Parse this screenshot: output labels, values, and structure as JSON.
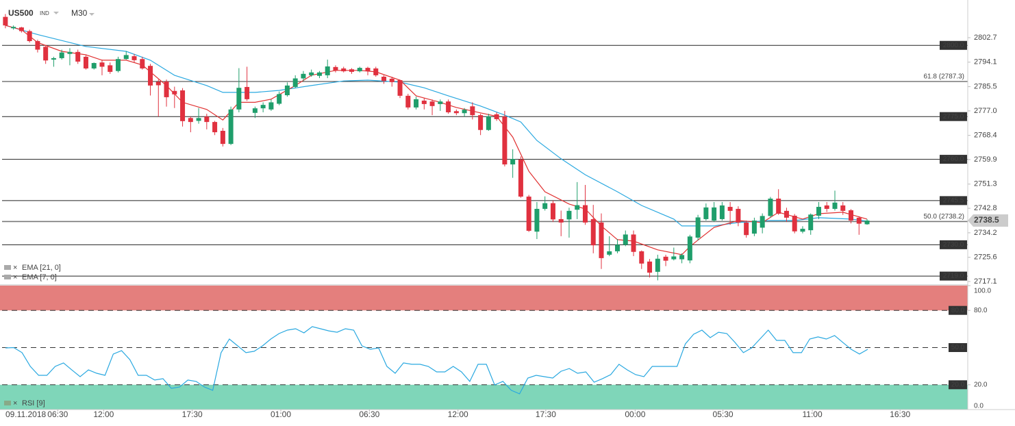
{
  "chart_data": [
    {
      "type": "candlestick",
      "title": "US500",
      "subtitle": "IND",
      "timeframe": "M30",
      "date_label": "09.11.2018",
      "xlim": [
        -0.5,
        119.5
      ],
      "xticks": [
        {
          "value": 6.5,
          "label": "06:30"
        },
        {
          "value": 12.2,
          "label": "12:00"
        },
        {
          "value": 23.2,
          "label": "17:30"
        },
        {
          "value": 34.2,
          "label": "01:00"
        },
        {
          "value": 45.2,
          "label": "06:30"
        },
        {
          "value": 56.2,
          "label": "12:00"
        },
        {
          "value": 67.1,
          "label": "17:30"
        },
        {
          "value": 78.2,
          "label": "00:00"
        },
        {
          "value": 89.1,
          "label": "05:30"
        },
        {
          "value": 100.2,
          "label": "11:00"
        },
        {
          "value": 111.1,
          "label": "16:30"
        }
      ],
      "ylim": [
        2715.9,
        2811.6
      ],
      "yticks": [
        2717.1,
        2725.6,
        2734.2,
        2742.8,
        2751.3,
        2759.9,
        2768.4,
        {
          "value": 2777.0,
          "label": "2777.0"
        },
        2785.5,
        2794.1,
        2802.7
      ],
      "up_color": "#1f9e6b",
      "down_color": "#e0313f",
      "open": [
        2810,
        2806,
        2806.3,
        2805,
        2801.5,
        2799.5,
        2795,
        2795.5,
        2797,
        2797.7,
        2796,
        2791.9,
        2794,
        2793,
        2791,
        2795.2,
        2796.2,
        2795.2,
        2792.8,
        2787.2,
        2787.3,
        2784,
        2784.2,
        2774.5,
        2773.5,
        2775,
        2773.1,
        2770,
        2765.4,
        2777.5,
        2785.4,
        2776.3,
        2777.9,
        2777.5,
        2779.5,
        2782.5,
        2785.4,
        2788.4,
        2789.5,
        2789.3,
        2789.5,
        2792.4,
        2791.9,
        2791.6,
        2790.9,
        2792.1,
        2791.9,
        2789,
        2788.3,
        2787.8,
        2782.3,
        2778.2,
        2780.6,
        2780.3,
        2779.4,
        2780.3,
        2776.9,
        2776.2,
        2778.6,
        2775.5,
        2770.3,
        2775.8,
        2775,
        2758.2,
        2759.9,
        2746.9,
        2734.6,
        2742.6,
        2744.6,
        2739,
        2738.9,
        2742.3,
        2743.9,
        2739,
        2737.8,
        2726.5,
        2727.7,
        2730,
        2733.6,
        2727.7,
        2724.1,
        2720.5,
        2725.8,
        2724.9,
        2724.9,
        2724.5,
        2732.5,
        2739,
        2738.5,
        2739,
        2743.3,
        2742.6,
        2737.8,
        2733.9,
        2736,
        2740.1,
        2746.2,
        2741.9,
        2740.2,
        2734.6,
        2735.1,
        2740.2,
        2743.8,
        2742.6,
        2743.8,
        2742.1,
        2739.5,
        2737.2
      ],
      "high": [
        2811,
        2807,
        2806.5,
        2805.5,
        2802,
        2800,
        2796,
        2798.5,
        2799,
        2798.5,
        2796.5,
        2794,
        2795,
        2794,
        2796,
        2798,
        2797,
        2796,
        2793.5,
        2788,
        2788,
        2785.5,
        2785,
        2775,
        2778,
        2776,
        2773.5,
        2771,
        2778.5,
        2792,
        2792.5,
        2778.5,
        2780,
        2781,
        2783.8,
        2787,
        2789.5,
        2791,
        2791.5,
        2791,
        2795,
        2793,
        2792.5,
        2792,
        2792.5,
        2792.5,
        2792.5,
        2789.5,
        2789,
        2788,
        2783,
        2782,
        2781.5,
        2781,
        2781,
        2781,
        2777.5,
        2778,
        2780,
        2776,
        2776,
        2776.5,
        2777,
        2763.5,
        2761,
        2747.5,
        2745,
        2747,
        2745.5,
        2742,
        2743,
        2752,
        2751,
        2744,
        2741,
        2733,
        2732,
        2735,
        2735,
        2728,
        2725,
        2726.5,
        2726.5,
        2729,
        2727,
        2733.5,
        2740.5,
        2744.5,
        2745,
        2745,
        2745,
        2743.5,
        2738.5,
        2739.5,
        2741,
        2746.8,
        2749.5,
        2743,
        2740.8,
        2736.5,
        2741,
        2745,
        2745,
        2749,
        2745,
        2742.5,
        2740,
        2739
      ],
      "low": [
        2806,
        2805.5,
        2804.5,
        2801,
        2797.5,
        2793.5,
        2792.5,
        2795,
        2793,
        2793.5,
        2791.5,
        2791.5,
        2789.5,
        2790,
        2790.5,
        2795,
        2794,
        2791.5,
        2782.4,
        2775,
        2778.5,
        2778,
        2771.5,
        2769.5,
        2772.5,
        2770.5,
        2768.5,
        2764.5,
        2765,
        2776.5,
        2780.5,
        2774.5,
        2776.5,
        2777,
        2779,
        2782,
        2785,
        2787.5,
        2789,
        2788.5,
        2788.5,
        2790.5,
        2790.5,
        2790,
        2790.5,
        2789.5,
        2789,
        2786.5,
        2785.5,
        2781.5,
        2777.5,
        2777.5,
        2777.5,
        2775.5,
        2777,
        2776,
        2775.5,
        2775,
        2774,
        2768.5,
        2770,
        2773.5,
        2757.5,
        2753.5,
        2746.5,
        2734.5,
        2732,
        2742,
        2738,
        2733,
        2732.5,
        2739,
        2737,
        2727,
        2721.5,
        2726,
        2727,
        2729.5,
        2726,
        2721.5,
        2718.5,
        2717.5,
        2722.5,
        2724.5,
        2723.5,
        2723.5,
        2731.5,
        2738.5,
        2738,
        2738.5,
        2737,
        2736.5,
        2732.5,
        2733,
        2734,
        2739.5,
        2740.5,
        2738,
        2734,
        2734,
        2733.5,
        2739,
        2741.5,
        2742,
        2740.5,
        2737.5,
        2733.5,
        2737
      ],
      "close": [
        2807,
        2806.5,
        2805,
        2801.5,
        2798.5,
        2794.7,
        2795.5,
        2797.5,
        2797.7,
        2794.3,
        2791.9,
        2793.8,
        2792.5,
        2790.7,
        2795.2,
        2796.6,
        2794.8,
        2791.9,
        2785.9,
        2786,
        2781.8,
        2782.8,
        2773.4,
        2773.1,
        2774.5,
        2773.1,
        2769.5,
        2765.4,
        2777.5,
        2785.1,
        2781.1,
        2777.9,
        2779.1,
        2780,
        2782.9,
        2785.9,
        2788.4,
        2790,
        2790.5,
        2790.5,
        2792.6,
        2791.2,
        2790.9,
        2790.7,
        2792.1,
        2790.9,
        2789.5,
        2787.5,
        2787.1,
        2782.3,
        2778.2,
        2781.1,
        2779.4,
        2778.7,
        2780.3,
        2776.5,
        2776.2,
        2777.4,
        2775.5,
        2770.3,
        2775.1,
        2774.1,
        2758.2,
        2760.1,
        2746.9,
        2734.9,
        2742.6,
        2744.6,
        2738.9,
        2737.8,
        2741.9,
        2743.9,
        2737.8,
        2729.8,
        2725.3,
        2727.7,
        2730,
        2733.6,
        2727.5,
        2723.4,
        2720.2,
        2725.1,
        2724.4,
        2725.9,
        2726.4,
        2732.9,
        2739.6,
        2743.1,
        2743.1,
        2743.8,
        2741.9,
        2737.8,
        2733.4,
        2738.5,
        2740.1,
        2746.2,
        2740.9,
        2739.5,
        2734.7,
        2735.6,
        2740.6,
        2743.3,
        2742.6,
        2744.8,
        2741.9,
        2738.5,
        2737.4,
        2738.5
      ],
      "series": [
        {
          "name": "EMA [21, 0]",
          "color": "#29a8e0",
          "x": [
            0,
            4,
            10,
            15,
            18,
            21,
            25,
            27,
            31,
            34,
            38,
            42,
            45,
            49,
            52,
            55,
            59,
            62,
            64,
            66,
            69,
            72,
            76,
            79,
            83,
            84,
            88,
            91,
            95,
            98,
            101,
            105,
            107
          ],
          "values": [
            2807,
            2803.8,
            2799.6,
            2797.9,
            2794.8,
            2789.5,
            2785.9,
            2783.5,
            2783.5,
            2784.2,
            2785.9,
            2787.5,
            2787.8,
            2787.1,
            2785.1,
            2782.3,
            2778.7,
            2775.5,
            2773.1,
            2766.6,
            2760.2,
            2754.6,
            2748.6,
            2743.8,
            2739,
            2736.6,
            2736.6,
            2737.8,
            2738.5,
            2738.5,
            2739.5,
            2739,
            2738.3
          ]
        },
        {
          "name": "EMA [7, 0]",
          "color": "#e03030",
          "x": [
            0,
            2,
            4,
            7,
            10,
            12,
            15,
            17,
            20,
            22,
            25,
            27,
            29,
            31,
            33,
            36,
            38,
            41,
            44,
            46,
            49,
            51,
            54,
            56,
            59,
            61,
            63,
            65,
            67,
            70,
            72,
            74,
            76,
            78,
            81,
            84,
            85,
            88,
            91,
            94,
            96,
            99,
            101,
            104,
            107
          ],
          "values": [
            2807,
            2805.5,
            2801,
            2797.9,
            2796.7,
            2794.8,
            2794.8,
            2793.1,
            2785.9,
            2780,
            2777.5,
            2773.8,
            2780,
            2780,
            2781.1,
            2785.9,
            2789.5,
            2791.2,
            2791.2,
            2790.7,
            2787.8,
            2782.3,
            2780,
            2778.2,
            2776.3,
            2775.1,
            2767.8,
            2755.8,
            2748.6,
            2744.3,
            2742.6,
            2736.6,
            2731.8,
            2731.3,
            2728.2,
            2726.5,
            2729.4,
            2736.1,
            2738.5,
            2737.8,
            2741.4,
            2739,
            2740.9,
            2741.4,
            2739
          ]
        }
      ],
      "levels": [
        {
          "value": 2800,
          "label": "2800.0"
        },
        {
          "value": 2775,
          "label": "2775.0"
        },
        {
          "value": 2760,
          "label": "2760.0"
        },
        {
          "value": 2745.5,
          "label": "2745.5"
        },
        {
          "value": 2730,
          "label": "2730.0"
        },
        {
          "value": 2719,
          "label": "2719.0"
        }
      ],
      "fib_levels": [
        {
          "value": 2787.3,
          "label": "61.8 (2787.3)"
        },
        {
          "value": 2738.2,
          "label": "50.0 (2738.2)"
        }
      ],
      "current_price": 2738.5
    },
    {
      "type": "line",
      "name": "RSI [9]",
      "color": "#29a8e0",
      "ylim": [
        0,
        100
      ],
      "yticks": [
        {
          "value": 0,
          "label": "0.0"
        },
        {
          "value": 20,
          "label": "20.0"
        },
        {
          "value": 80,
          "label": "80.0"
        },
        {
          "value": 100,
          "label": "100.0"
        }
      ],
      "levels": [
        {
          "value": 80,
          "label": "80.0"
        },
        {
          "value": 50,
          "label": "50.0"
        },
        {
          "value": 20,
          "label": "20.0"
        }
      ],
      "overbought_color": "#e47f7d",
      "oversold_color": "#7fd6b9",
      "values": [
        49.7,
        50,
        45.9,
        34.8,
        27.6,
        27.6,
        34.8,
        37.6,
        32,
        26.5,
        32,
        29.3,
        27.6,
        44.8,
        47.5,
        40.3,
        27.6,
        27.6,
        23.8,
        24.9,
        17.1,
        18.2,
        23.8,
        22.7,
        18.2,
        15.5,
        45.9,
        56.9,
        51.4,
        45.9,
        47,
        51.4,
        56.9,
        61.3,
        64.1,
        65.2,
        61.9,
        66.9,
        65.2,
        63.5,
        62.4,
        65.2,
        64.1,
        51.4,
        48.6,
        49.7,
        34.8,
        29.3,
        37.6,
        36.5,
        36.5,
        34.8,
        30.4,
        30.4,
        34.8,
        30.4,
        22.7,
        36.5,
        36.5,
        19.9,
        22.7,
        15.5,
        12.7,
        25.4,
        27.6,
        26.5,
        25.4,
        30.9,
        33.1,
        29.3,
        30.4,
        22.1,
        24.9,
        28.2,
        36.5,
        32,
        28.2,
        26.5,
        34.8,
        34.8,
        34.8,
        34.8,
        53,
        60.8,
        64.1,
        58,
        62.4,
        61.3,
        54.1,
        45.9,
        49.7,
        56.9,
        64.1,
        55.8,
        55.8,
        45.9,
        45.9,
        56.9,
        58.6,
        56.9,
        59.7,
        54.1,
        48.6,
        44.8,
        48.6
      ]
    }
  ]
}
